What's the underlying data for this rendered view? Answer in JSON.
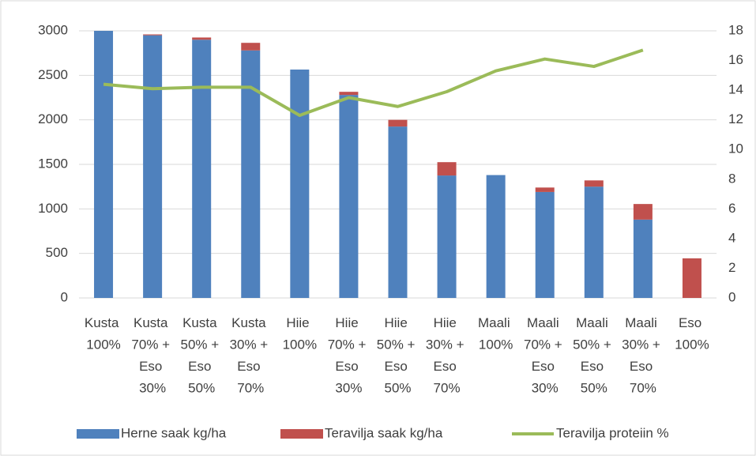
{
  "chart_data": {
    "type": "bar",
    "stacked": true,
    "categories": [
      "Kusta 100%",
      "Kusta 70% + Eso 30%",
      "Kusta 50% + Eso 50%",
      "Kusta 30% + Eso 70%",
      "Hiie 100%",
      "Hiie 70% + Eso 30%",
      "Hiie 50% + Eso 50%",
      "Hiie 30% + Eso 70%",
      "Maali 100%",
      "Maali 70% + Eso 30%",
      "Maali 50% + Eso 50%",
      "Maali 30% + Eso 70%",
      "Eso 100%"
    ],
    "series": [
      {
        "name": "Herne saak kg/ha",
        "type": "bar",
        "color": "#4f81bd",
        "values": [
          3000,
          2950,
          2900,
          2780,
          2565,
          2280,
          1925,
          1375,
          1380,
          1190,
          1250,
          880,
          0
        ]
      },
      {
        "name": "Teravilja saak kg/ha",
        "type": "bar",
        "color": "#c0504d",
        "values": [
          0,
          10,
          25,
          85,
          0,
          35,
          75,
          150,
          0,
          50,
          70,
          175,
          445
        ]
      },
      {
        "name": "Teravilja proteiin %",
        "type": "line",
        "axis": "y2",
        "color": "#9bbb59",
        "values": [
          14.4,
          14.1,
          14.2,
          14.2,
          12.3,
          13.5,
          12.9,
          13.9,
          15.3,
          16.1,
          15.6,
          16.7,
          null
        ]
      }
    ],
    "ylim": [
      0,
      3000
    ],
    "yticks": [
      0,
      500,
      1000,
      1500,
      2000,
      2500,
      3000
    ],
    "y2lim": [
      0,
      18
    ],
    "y2ticks": [
      0,
      2,
      4,
      6,
      8,
      10,
      12,
      14,
      16,
      18
    ],
    "grid": true,
    "legend": "bottom"
  }
}
